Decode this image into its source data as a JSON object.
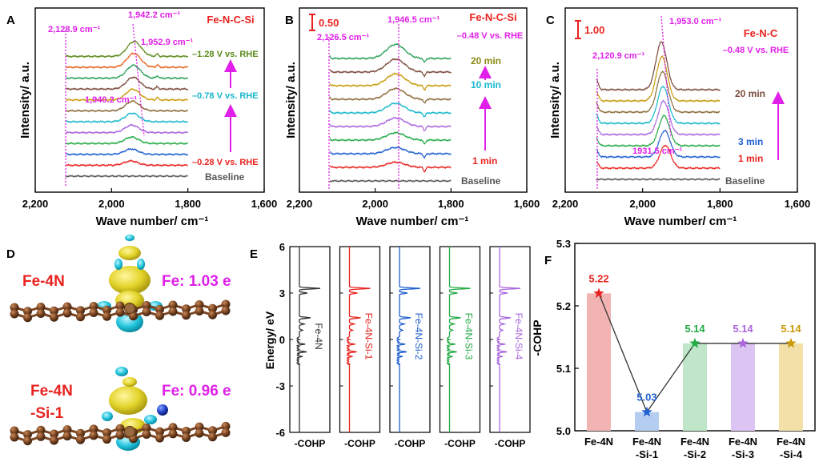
{
  "colors": {
    "red": "#e8231f",
    "magenta": "#e020e8",
    "olive": "#8c8a12",
    "cyan": "#17b8cc",
    "brown": "#7a4a3a",
    "blue": "#1f5fd0",
    "green": "#22aa44",
    "purple": "#aa66dd",
    "gold": "#c99a0a",
    "gray": "#555555",
    "black": "#111111",
    "ir_series": [
      "#e8231f",
      "#1f5fd0",
      "#22aa44",
      "#aa66dd",
      "#17b8cc",
      "#8c6a3a",
      "#c99a0a",
      "#7a4a3a",
      "#2ca05a",
      "#e8621f",
      "#5a8a1a",
      "#999999"
    ]
  },
  "panels": {
    "A": {
      "label": "A"
    },
    "B": {
      "label": "B"
    },
    "C": {
      "label": "C"
    },
    "D": {
      "label": "D"
    },
    "E": {
      "label": "E"
    },
    "F": {
      "label": "F"
    }
  },
  "chart_data": [
    {
      "id": "A",
      "type": "line",
      "title": "Fe-N-C-Si",
      "xlabel": "Wave number/ cm⁻¹",
      "ylabel": "Intensity/ a.u.",
      "xlim": [
        2200,
        1600
      ],
      "xticks": [
        2200,
        2000,
        1800,
        1600
      ],
      "xtick_labels": [
        "2,200",
        "2,000",
        "1,800",
        "1,600"
      ],
      "x_data_range": [
        2120,
        1800
      ],
      "n_traces": 12,
      "baseline_label": "Baseline",
      "peak_labels": [
        "2,128.9 cm⁻¹",
        "1,942.2 cm⁻¹",
        "1,952.9 cm⁻¹",
        "1,940.2 cm⁻¹"
      ],
      "potential_labels": [
        "–1.28 V vs. RHE",
        "–0.78 V vs. RHE",
        "–0.28 V vs. RHE"
      ],
      "peaks": [
        2128.9,
        1942.2,
        1952.9,
        1940.2
      ]
    },
    {
      "id": "B",
      "type": "line",
      "title": "Fe-N-C-Si",
      "subtitle": "–0.48 V vs. RHE",
      "scale_label": "0.50",
      "xlabel": "Wave number/ cm⁻¹",
      "ylabel": "Intensity/ a.u.",
      "xlim": [
        2200,
        1600
      ],
      "xticks": [
        2200,
        2000,
        1800,
        1600
      ],
      "xtick_labels": [
        "2,200",
        "2,000",
        "1,800",
        "1,600"
      ],
      "x_data_range": [
        2120,
        1800
      ],
      "n_traces": 10,
      "baseline_label": "Baseline",
      "peak_labels": [
        "2,126.5 cm⁻¹",
        "1,946.5 cm⁻¹"
      ],
      "time_labels": [
        "20 min",
        "10 min",
        "1 min"
      ],
      "peaks": [
        2126.5,
        1946.5
      ]
    },
    {
      "id": "C",
      "type": "line",
      "title": "Fe-N-C",
      "subtitle": "–0.48 V vs. RHE",
      "scale_label": "1.00",
      "xlabel": "Wave number/ cm⁻¹",
      "ylabel": "Intensity/ a.u.",
      "xlim": [
        2200,
        1600
      ],
      "xticks": [
        2200,
        2000,
        1800,
        1600
      ],
      "xtick_labels": [
        "2,200",
        "2,000",
        "1,800",
        "1,600"
      ],
      "x_data_range": [
        2120,
        1800
      ],
      "n_traces": 9,
      "baseline_label": "Baseline",
      "peak_labels": [
        "2,120.9 cm⁻¹",
        "1,953.0 cm⁻¹",
        "1931.5 cm⁻¹"
      ],
      "time_labels": [
        "20 min",
        "3 min",
        "1 min"
      ],
      "peaks": [
        2120.9,
        1953.0,
        1931.5
      ]
    },
    {
      "id": "E",
      "type": "line",
      "ylabel": "Energy/ eV",
      "ylim": [
        -6,
        6
      ],
      "yticks": [
        6,
        3,
        0,
        -3,
        -6
      ],
      "ytick_labels": [
        "6",
        "3",
        "0",
        "-3",
        "-6"
      ],
      "xlabel_each": "-COHP",
      "series": [
        {
          "name": "Fe-4N",
          "color": "#333333"
        },
        {
          "name": "Fe-4N-Si-1",
          "color": "#e8231f"
        },
        {
          "name": "Fe-4N-Si-2",
          "color": "#1f5fd0"
        },
        {
          "name": "Fe-4N-Si-3",
          "color": "#22aa44"
        },
        {
          "name": "Fe-4N-Si-4",
          "color": "#aa66dd"
        }
      ]
    },
    {
      "id": "F",
      "type": "bar",
      "ylabel": "-COHP",
      "ylim": [
        5.0,
        5.3
      ],
      "yticks": [
        5.0,
        5.1,
        5.2,
        5.3
      ],
      "ytick_labels": [
        "5.0",
        "5.1",
        "5.2",
        "5.3"
      ],
      "categories": [
        [
          "Fe-4N"
        ],
        [
          "Fe-4N",
          "-Si-1"
        ],
        [
          "Fe-4N",
          "-Si-2"
        ],
        [
          "Fe-4N",
          "-Si-3"
        ],
        [
          "Fe-4N",
          "-Si-4"
        ]
      ],
      "values": [
        5.22,
        5.03,
        5.14,
        5.14,
        5.14
      ],
      "value_labels": [
        "5.22",
        "5.03",
        "5.14",
        "5.14",
        "5.14"
      ],
      "bar_colors": [
        "#f2b3b3",
        "#b5cdf0",
        "#bfe6c8",
        "#dcc5f2",
        "#f2e0a8"
      ],
      "star_colors": [
        "#e8231f",
        "#1f5fd0",
        "#22aa44",
        "#aa66dd",
        "#c99a0a"
      ]
    }
  ],
  "structures": {
    "fe4n": {
      "name": "Fe-4N",
      "charge": "Fe: 1.03 e"
    },
    "fe4n_si1": {
      "name_line1": "Fe-4N",
      "name_line2": "-Si-1",
      "charge": "Fe: 0.96 e"
    }
  }
}
